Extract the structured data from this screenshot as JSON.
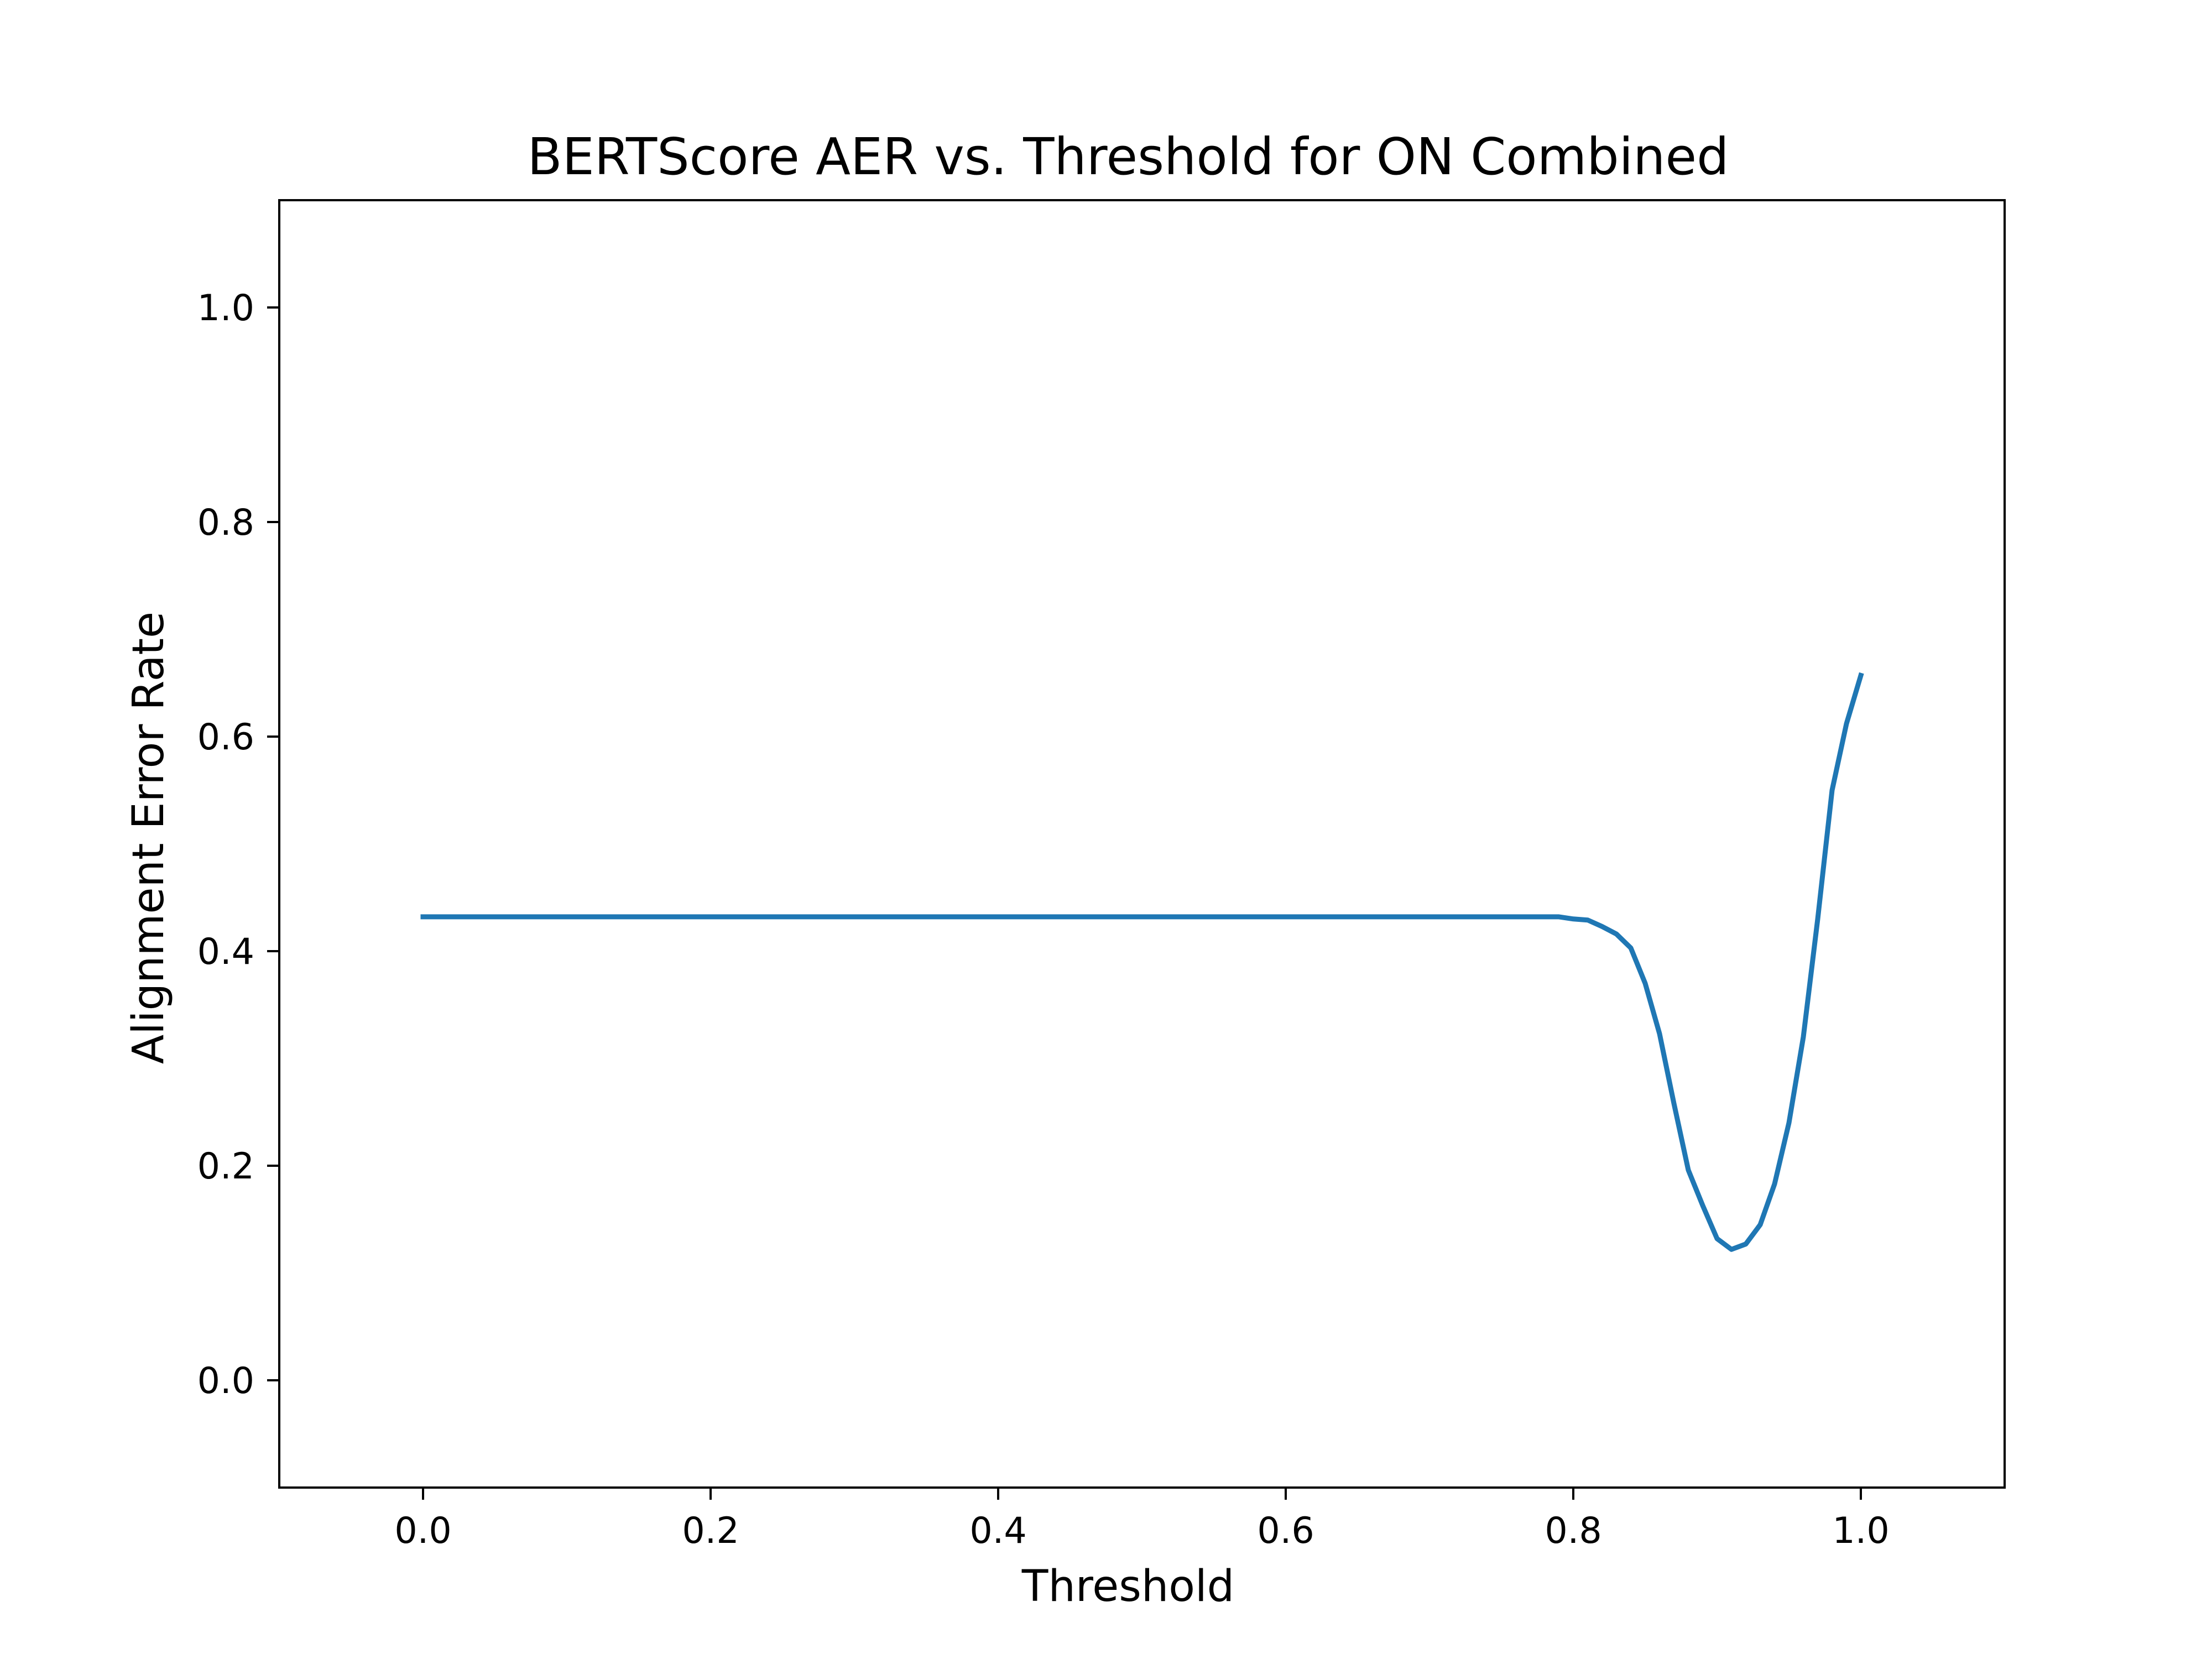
{
  "chart_data": {
    "type": "line",
    "title": "BERTScore AER vs. Threshold for ON Combined",
    "xlabel": "Threshold",
    "ylabel": "Alignment Error Rate",
    "xlim": [
      -0.1,
      1.1
    ],
    "ylim": [
      -0.1,
      1.1
    ],
    "grid": false,
    "x_ticks": [
      "0.0",
      "0.2",
      "0.4",
      "0.6",
      "0.8",
      "1.0"
    ],
    "y_ticks": [
      "0.0",
      "0.2",
      "0.4",
      "0.6",
      "0.8",
      "1.0"
    ],
    "series": [
      {
        "color": "#1f77b4",
        "x": [
          0.0,
          0.1,
          0.2,
          0.3,
          0.4,
          0.5,
          0.6,
          0.7,
          0.79,
          0.8,
          0.81,
          0.82,
          0.83,
          0.84,
          0.85,
          0.86,
          0.87,
          0.88,
          0.89,
          0.9,
          0.91,
          0.92,
          0.93,
          0.94,
          0.95,
          0.96,
          0.97,
          0.98,
          0.99,
          1.0
        ],
        "y": [
          0.432,
          0.432,
          0.432,
          0.432,
          0.432,
          0.432,
          0.432,
          0.432,
          0.432,
          0.43,
          0.429,
          0.423,
          0.416,
          0.403,
          0.37,
          0.323,
          0.258,
          0.196,
          0.163,
          0.132,
          0.122,
          0.127,
          0.145,
          0.183,
          0.24,
          0.32,
          0.43,
          0.55,
          0.612,
          0.657
        ]
      }
    ]
  }
}
